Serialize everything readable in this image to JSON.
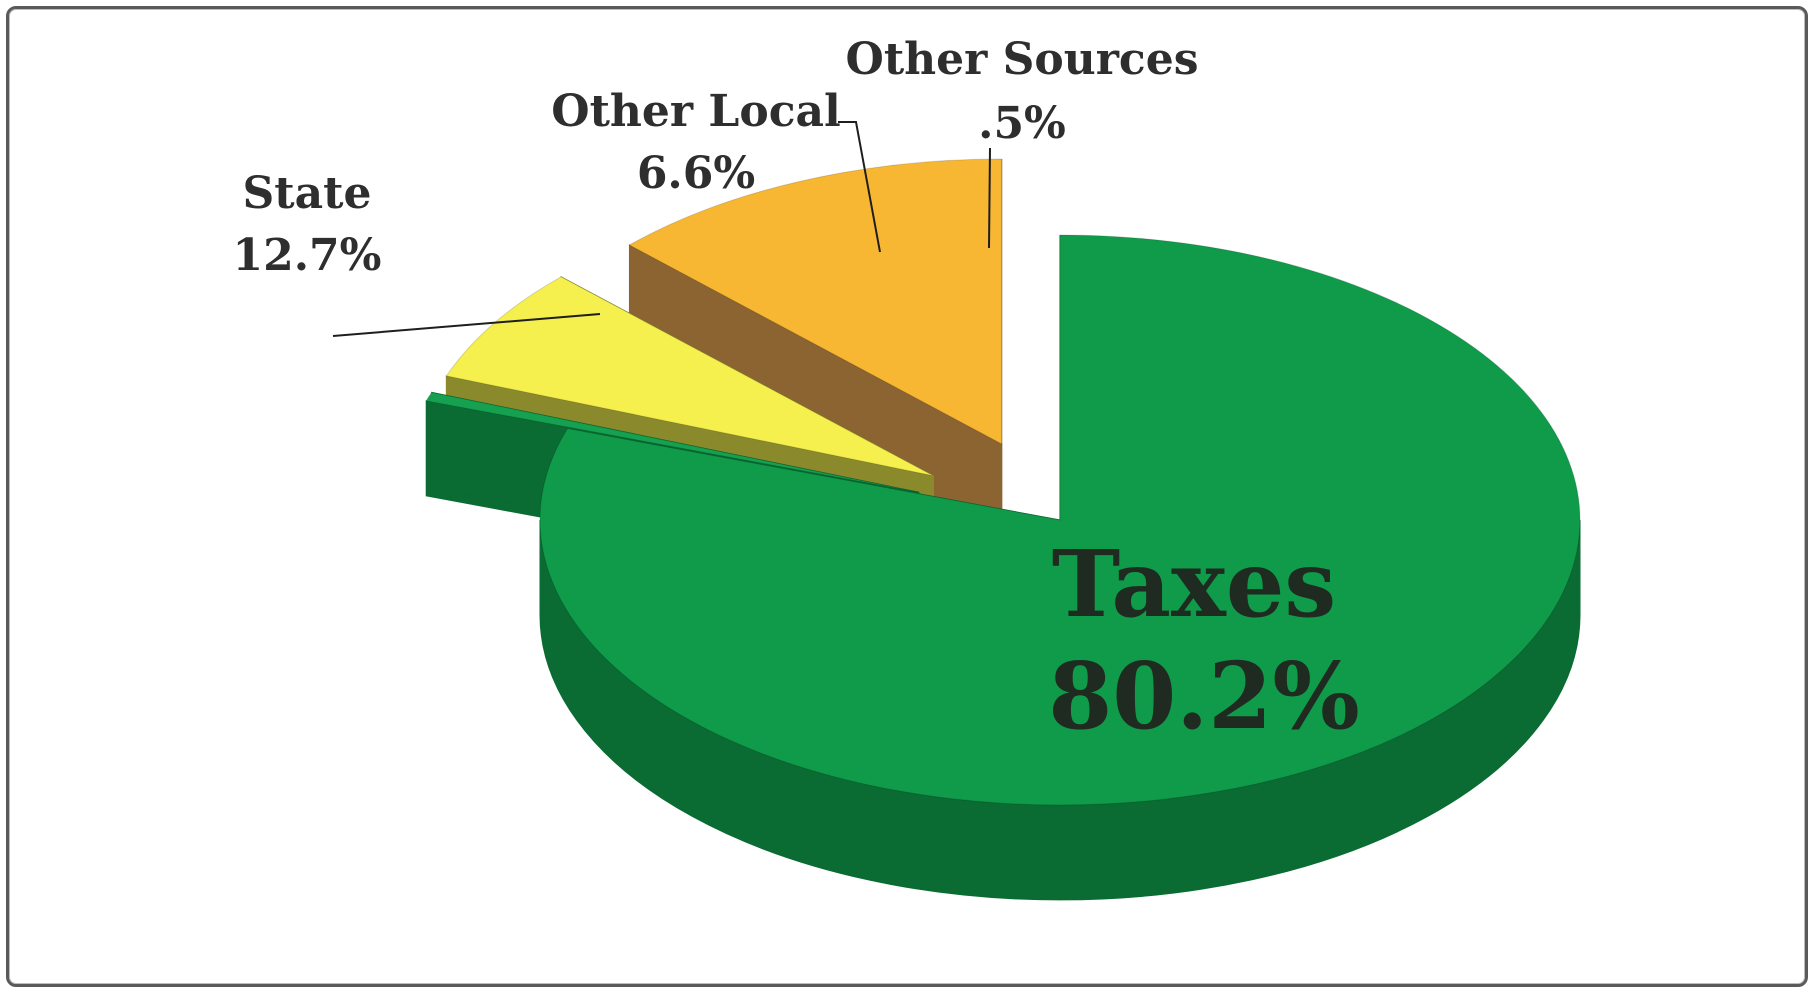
{
  "chart_data": {
    "type": "pie",
    "variant": "3d-exploded",
    "title": "",
    "slices": [
      {
        "label": "Taxes",
        "value": 80.2,
        "display": "80.2%",
        "color": "#0f9b4a",
        "side_color": "#0a6b33"
      },
      {
        "label": "Other Sources",
        "value": 0.5,
        "display": ".5%",
        "color": "#15a150",
        "side_color": "#0a6b33"
      },
      {
        "label": "Other Local",
        "value": 6.6,
        "display": "6.6%",
        "color": "#f5f04d",
        "side_color": "#8a8a2c"
      },
      {
        "label": "State",
        "value": 12.7,
        "display": "12.7%",
        "color": "#f7b733",
        "side_color": "#8b6431"
      }
    ],
    "legend": "none",
    "labels": "outside-with-leader-lines"
  }
}
